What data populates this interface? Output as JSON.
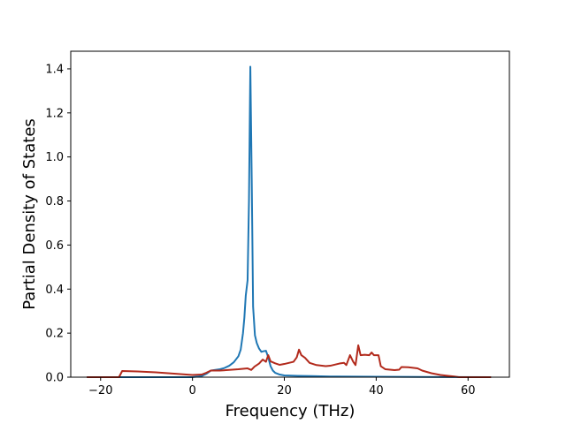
{
  "chart_data": {
    "type": "line",
    "title": "",
    "xlabel": "Frequency (THz)",
    "ylabel": "Partial Density of States",
    "xlim": [
      -26.5,
      69
    ],
    "ylim": [
      0,
      1.48
    ],
    "xticks": [
      -20,
      0,
      20,
      40,
      60
    ],
    "xtick_labels": [
      "−20",
      "0",
      "20",
      "40",
      "60"
    ],
    "yticks": [
      0.0,
      0.2,
      0.4,
      0.6,
      0.8,
      1.0,
      1.2,
      1.4
    ],
    "ytick_labels": [
      "0.0",
      "0.2",
      "0.4",
      "0.6",
      "0.8",
      "1.0",
      "1.2",
      "1.4"
    ],
    "grid": false,
    "legend": "none",
    "series": [
      {
        "color": "#1f77b4",
        "points": [
          [
            -23,
            0.0
          ],
          [
            -15,
            0.0
          ],
          [
            0,
            0.0
          ],
          [
            2,
            0.005
          ],
          [
            3,
            0.015
          ],
          [
            4,
            0.03
          ],
          [
            5,
            0.033
          ],
          [
            6,
            0.036
          ],
          [
            7,
            0.042
          ],
          [
            8,
            0.052
          ],
          [
            9,
            0.068
          ],
          [
            10,
            0.095
          ],
          [
            10.5,
            0.125
          ],
          [
            11,
            0.2
          ],
          [
            11.3,
            0.27
          ],
          [
            11.6,
            0.37
          ],
          [
            12,
            0.44
          ],
          [
            12.3,
            0.8
          ],
          [
            12.6,
            1.41
          ],
          [
            12.9,
            0.9
          ],
          [
            13.2,
            0.32
          ],
          [
            13.6,
            0.19
          ],
          [
            14,
            0.155
          ],
          [
            14.5,
            0.13
          ],
          [
            15,
            0.115
          ],
          [
            15.5,
            0.118
          ],
          [
            16,
            0.12
          ],
          [
            16.5,
            0.09
          ],
          [
            17,
            0.05
          ],
          [
            17.5,
            0.03
          ],
          [
            18,
            0.02
          ],
          [
            19,
            0.012
          ],
          [
            20,
            0.008
          ],
          [
            23,
            0.006
          ],
          [
            26,
            0.005
          ],
          [
            30,
            0.003
          ],
          [
            40,
            0.002
          ],
          [
            50,
            0.001
          ],
          [
            65,
            0.0
          ]
        ]
      },
      {
        "color": "#b22a1c",
        "points": [
          [
            -23,
            0.0
          ],
          [
            -16,
            0.0
          ],
          [
            -15.3,
            0.028
          ],
          [
            -12,
            0.026
          ],
          [
            -8,
            0.022
          ],
          [
            -4,
            0.016
          ],
          [
            0,
            0.01
          ],
          [
            2,
            0.012
          ],
          [
            3,
            0.02
          ],
          [
            4,
            0.03
          ],
          [
            6,
            0.03
          ],
          [
            8,
            0.033
          ],
          [
            10,
            0.036
          ],
          [
            12,
            0.04
          ],
          [
            12.8,
            0.033
          ],
          [
            13.5,
            0.048
          ],
          [
            14.5,
            0.062
          ],
          [
            15.3,
            0.08
          ],
          [
            16,
            0.07
          ],
          [
            16.5,
            0.1
          ],
          [
            17,
            0.072
          ],
          [
            18,
            0.063
          ],
          [
            19,
            0.056
          ],
          [
            20,
            0.06
          ],
          [
            21,
            0.065
          ],
          [
            22,
            0.07
          ],
          [
            22.7,
            0.09
          ],
          [
            23.2,
            0.125
          ],
          [
            23.7,
            0.1
          ],
          [
            24.5,
            0.088
          ],
          [
            25.5,
            0.065
          ],
          [
            27,
            0.055
          ],
          [
            29,
            0.05
          ],
          [
            30,
            0.052
          ],
          [
            32,
            0.062
          ],
          [
            33,
            0.065
          ],
          [
            33.5,
            0.055
          ],
          [
            34.3,
            0.1
          ],
          [
            35,
            0.07
          ],
          [
            35.5,
            0.055
          ],
          [
            36.1,
            0.145
          ],
          [
            36.6,
            0.1
          ],
          [
            37.5,
            0.102
          ],
          [
            38.5,
            0.1
          ],
          [
            39,
            0.112
          ],
          [
            39.5,
            0.1
          ],
          [
            40.5,
            0.1
          ],
          [
            41,
            0.05
          ],
          [
            42,
            0.036
          ],
          [
            44,
            0.032
          ],
          [
            45,
            0.034
          ],
          [
            45.5,
            0.046
          ],
          [
            47,
            0.045
          ],
          [
            49,
            0.04
          ],
          [
            50,
            0.03
          ],
          [
            52,
            0.018
          ],
          [
            54,
            0.01
          ],
          [
            57,
            0.003
          ],
          [
            58,
            0.0
          ],
          [
            65,
            0.0
          ]
        ]
      }
    ]
  }
}
